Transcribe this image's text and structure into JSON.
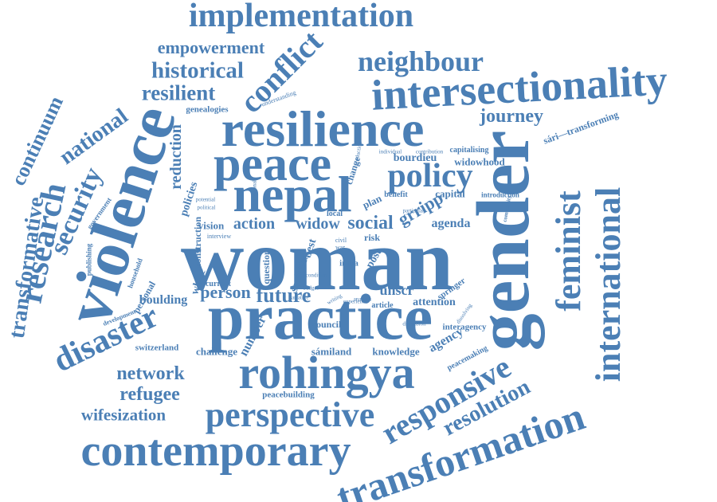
{
  "word_color": "#4b7fb5",
  "background_color": "#ffffff",
  "words": [
    "implementation",
    "empowerment",
    "historical",
    "conflict",
    "neighbour",
    "intersectionality",
    "resilient",
    "resilience",
    "journey",
    "gender",
    "feminist",
    "international",
    "violence",
    "peace",
    "nepal",
    "policy",
    "woman",
    "practice",
    "rohingya",
    "disaster",
    "security",
    "research",
    "continuum",
    "transformative",
    "national",
    "genealogies",
    "reduction",
    "network",
    "refugee",
    "wifesization",
    "perspective",
    "contemporary",
    "responsive",
    "resolution",
    "transformation",
    "sári—transforming",
    "switzerland",
    "challenge",
    "number",
    "white",
    "peacebuilding",
    "sámiland",
    "knowledge",
    "agency",
    "interagency",
    "peacemaking",
    "council",
    "future",
    "person",
    "boulding",
    "current",
    "action",
    "vision",
    "widow",
    "social",
    "grripp",
    "agenda",
    "bourdieu",
    "widowhood",
    "capitalising",
    "capital",
    "unscr",
    "attention",
    "springer",
    "article",
    "societies",
    "question",
    "best",
    "post",
    "risk",
    "india",
    "change",
    "plan",
    "local",
    "construction",
    "policies",
    "government",
    "publishing",
    "household",
    "development",
    "personal",
    "benefit",
    "introduction",
    "community",
    "understanding",
    "individual",
    "contribution",
    "production",
    "emotional",
    "interview",
    "political",
    "potential",
    "particular",
    "discussion",
    "experience",
    "dissolving",
    "analysis",
    "narrative",
    "budget",
    "condition",
    "writing",
    "civil",
    "war"
  ]
}
